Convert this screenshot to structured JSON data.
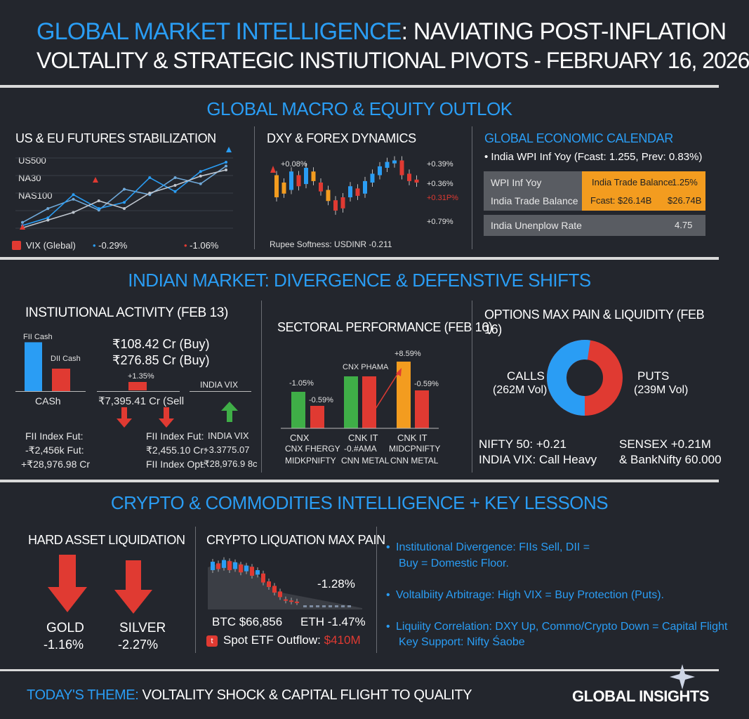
{
  "header": {
    "title_blue": "GLOBAL MARKET INTELLIGENCE",
    "title_rest": ": NAVIATING POST-INFLATION",
    "subtitle": "VOLTALITY & STRATEGIC INSTIUTIONAL PIVOTS - FEBRUARY 16, 2026"
  },
  "macro": {
    "title": "GLOBAL MACRO & EQUITY OUTLOK",
    "futures": {
      "title": "US & EU FUTURES STABILIZATION",
      "series_labels": [
        "US500",
        "NA30",
        "NAS100"
      ],
      "vix_label": "VIX (Glebal)",
      "change1": "-0.29%",
      "change2": "-1.06%",
      "chart_data": {
        "type": "line",
        "title": "US & EU FUTURES STABILIZATION",
        "x": [
          1,
          2,
          3,
          4,
          5,
          6,
          7,
          8,
          9
        ],
        "series": [
          {
            "name": "US500",
            "values": [
              12,
              30,
              42,
              28,
              55,
              48,
              70,
              62,
              85
            ]
          },
          {
            "name": "NA30",
            "values": [
              8,
              18,
              48,
              30,
              38,
              70,
              52,
              78,
              90
            ]
          },
          {
            "name": "NAS100",
            "values": [
              5,
              15,
              25,
              40,
              30,
              50,
              60,
              72,
              80
            ]
          }
        ]
      }
    },
    "dxy": {
      "title": "DXY & FOREX DYNAMICS",
      "label_left": "+0.08%",
      "label_r1": "+0.39%",
      "label_r2": "+0.36%",
      "label_r3": "+0.31P%",
      "label_r4": "+0.79%",
      "footer": "Rupee Softness: USDINR -0.211",
      "chart_data": {
        "type": "candlestick",
        "title": "DXY & FOREX DYNAMICS",
        "candles": [
          {
            "o": 40,
            "c": 70,
            "color": "orange"
          },
          {
            "o": 60,
            "c": 45,
            "color": "orange"
          },
          {
            "o": 50,
            "c": 75,
            "color": "blue"
          },
          {
            "o": 70,
            "c": 55,
            "color": "red"
          },
          {
            "o": 58,
            "c": 80,
            "color": "blue"
          },
          {
            "o": 75,
            "c": 62,
            "color": "orange"
          },
          {
            "o": 60,
            "c": 48,
            "color": "red"
          },
          {
            "o": 50,
            "c": 35,
            "color": "orange"
          },
          {
            "o": 36,
            "c": 22,
            "color": "red"
          },
          {
            "o": 25,
            "c": 40,
            "color": "red"
          },
          {
            "o": 40,
            "c": 55,
            "color": "blue"
          },
          {
            "o": 52,
            "c": 42,
            "color": "red"
          },
          {
            "o": 45,
            "c": 62,
            "color": "blue"
          },
          {
            "o": 60,
            "c": 72,
            "color": "blue"
          },
          {
            "o": 70,
            "c": 82,
            "color": "blue"
          },
          {
            "o": 80,
            "c": 88,
            "color": "blue"
          },
          {
            "o": 86,
            "c": 90,
            "color": "blue"
          },
          {
            "o": 90,
            "c": 70,
            "color": "red"
          },
          {
            "o": 72,
            "c": 62,
            "color": "red"
          },
          {
            "o": 64,
            "c": 60,
            "color": "red"
          }
        ]
      }
    },
    "calendar": {
      "title": "GLOBAL ECONOMIC CALENDAR",
      "bullet": "India WPI Inf Yoy (Fcast: 1.255, Prev: 0.83%)",
      "rows": [
        {
          "left": "WPI Inf Yoy",
          "mid": "India Trade Balance",
          "right": "1.25%"
        },
        {
          "left": "India Trade Balance",
          "mid": "Fcast: $26.14B",
          "right": "$26.74B"
        },
        {
          "left": "India Unenplow Rate",
          "mid": "",
          "right": "4.75"
        }
      ]
    }
  },
  "india": {
    "title": "INDIAN MARKET: DIVERGENCE & DEFENSTIVE SHIFTS",
    "inst": {
      "title": "INSTIUTIONAL ACTIVITY (FEB 13)",
      "fii_cash": "FII Cash",
      "dii_cash": "DII Cash",
      "cash": "CASh",
      "buy1": "₹108.42 Cr (Buy)",
      "buy2": "₹276.85 Cr (Buy)",
      "pct": "+1.35%",
      "sell": "₹7,395.41 Cr (Sell",
      "india_vix": "INDIA VIX",
      "col1": [
        "FII Index Fut:",
        "-₹2,456k Fut:",
        "+₹28,976.98 Cr"
      ],
      "col2": [
        "FII Index Fut:",
        "₹2,455.10 Cr:",
        "FII Index Opt:"
      ],
      "col3": [
        "INDIA VIX",
        "+3.3775.07",
        "-₹28,976.9 8c"
      ],
      "chart_data": {
        "type": "bar",
        "categories": [
          "FII Cash",
          "DII Cash"
        ],
        "values": [
          108.42,
          276.85
        ]
      }
    },
    "sector": {
      "title": "SECTORAL PERFORMANCE (FEB 16)",
      "pct_labels": [
        "-1.05%",
        "-0.59%",
        "CNX PHAMA",
        "+8.59%",
        "-0.59%"
      ],
      "row1": [
        "CNX",
        "CNK IT",
        "CNK IT"
      ],
      "row2": [
        "CNX FHERGY",
        "-0.#AMA",
        "MIDCPNIFTY"
      ],
      "row3": [
        "MIDKPNIFTY",
        "CNN METAL",
        "CNN METAL"
      ],
      "chart_data": {
        "type": "bar",
        "categories": [
          "CNX",
          "CNX",
          "CNK IT",
          "CNK IT",
          "CNK IT",
          "CNK IT"
        ],
        "values": [
          -1.05,
          -0.59,
          1.2,
          1.2,
          8.59,
          -0.59
        ]
      }
    },
    "options": {
      "title": "OPTIONS MAX PAIN & LIQUIDITY (FEB 16)",
      "calls": "CALLS",
      "calls_vol": "(262M Vol)",
      "puts": "PUTS",
      "puts_vol": "(239M Vol)",
      "nifty": "NIFTY 50: +0.21",
      "vix": "INDIA VIX: Call Heavy",
      "sensex": "SENSEX +0.21M",
      "banknifty": "& BankNifty 60.000",
      "chart_data": {
        "type": "pie",
        "categories": [
          "CALLS",
          "PUTS"
        ],
        "values": [
          262,
          239
        ]
      }
    }
  },
  "crypto": {
    "title": "CRYPTO & COMMODITIES INTELLIGENCE + KEY LESSONS",
    "hard": {
      "title": "HARD ASSET LIQUIDATION",
      "gold": "GOLD",
      "gold_pct": "-1.16%",
      "silver": "SILVER",
      "silver_pct": "-2.27%"
    },
    "liq": {
      "title": "CRYPTO LIQUATION MAX PAIN",
      "pct": "-1.28%",
      "btc": "BTC $66,856",
      "eth": "ETH -1.47%",
      "etf_label": "Spot ETF Outflow:",
      "etf_value": "$410M",
      "chart_data": {
        "type": "candlestick",
        "candles": [
          {
            "o": 70,
            "c": 85
          },
          {
            "o": 82,
            "c": 72
          },
          {
            "o": 74,
            "c": 88
          },
          {
            "o": 86,
            "c": 70
          },
          {
            "o": 72,
            "c": 84
          },
          {
            "o": 80,
            "c": 66
          },
          {
            "o": 68,
            "c": 78
          },
          {
            "o": 76,
            "c": 60
          },
          {
            "o": 62,
            "c": 70
          },
          {
            "o": 64,
            "c": 48
          },
          {
            "o": 50,
            "c": 40
          },
          {
            "o": 42,
            "c": 30
          },
          {
            "o": 32,
            "c": 22
          },
          {
            "o": 18,
            "c": 16
          },
          {
            "o": 16,
            "c": 14
          },
          {
            "o": 14,
            "c": 13
          }
        ]
      }
    },
    "lessons": [
      {
        "line1": "Institutional Divergence: FIIs Sell, DII =",
        "line2": "Buy = Domestic Floor."
      },
      {
        "line1": "Voltalbiity Arbitrage: High VIX = Buy Protection (Puts).",
        "line2": ""
      },
      {
        "line1": "Liquiity Correlation: DXY Up, Commo/Crypto Down = Capital Flight",
        "line2": "Key Support: Nifty Śaobe"
      }
    ]
  },
  "footer": {
    "theme_label": "TODAY'S THEME:",
    "theme": "VOLTALITY SHOCK & CAPITAL FLIGHT TO QUALITY",
    "brand": "GLOBAL INSIGHTS"
  },
  "colors": {
    "blue": "#2a9df4",
    "red": "#e03a32",
    "green": "#3fae47",
    "orange": "#f39c1f",
    "bg": "#23262d"
  }
}
